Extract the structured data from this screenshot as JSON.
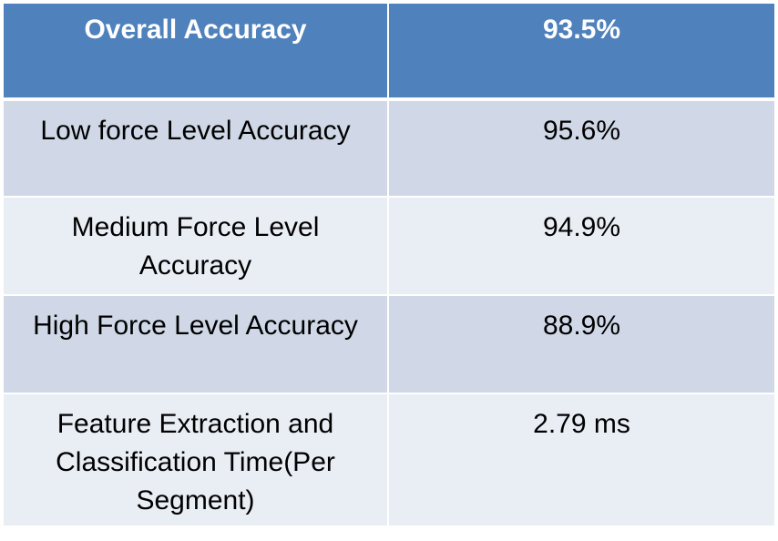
{
  "table": {
    "header": {
      "label": "Overall Accuracy",
      "value": "93.5%"
    },
    "rows": [
      {
        "label": "Low force Level Accuracy",
        "value": "95.6%"
      },
      {
        "label": "Medium Force Level Accuracy",
        "value": "94.9%"
      },
      {
        "label": "High Force Level Accuracy",
        "value": "88.9%"
      },
      {
        "label": "Feature Extraction and Classification Time(Per Segment)",
        "value": "2.79 ms"
      }
    ]
  },
  "colors": {
    "header_bg": "#4f81bd",
    "row_odd_bg": "#d0d8e8",
    "row_even_bg": "#e9edf4"
  }
}
